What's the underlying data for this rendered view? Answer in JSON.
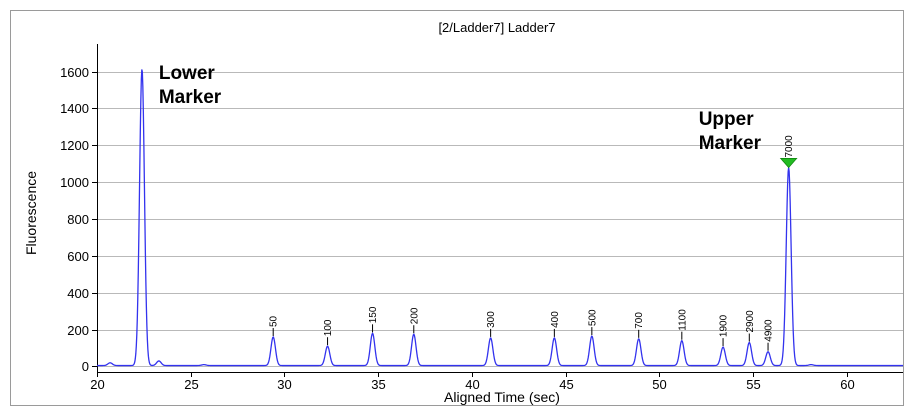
{
  "chart_data": {
    "type": "line",
    "title": "[2/Ladder7] Ladder7",
    "xlabel": "Aligned Time (sec)",
    "ylabel": "Fluorescence",
    "xlim": [
      20,
      63
    ],
    "ylim": [
      -30,
      1750
    ],
    "xticks": [
      20,
      25,
      30,
      35,
      40,
      45,
      50,
      55,
      60
    ],
    "yticks": [
      0,
      200,
      400,
      600,
      800,
      1000,
      1200,
      1400,
      1600
    ],
    "grid": "horizontal",
    "line_color": "#3333ee",
    "marker_color": "#22bb22",
    "baseline": 5,
    "peaks": [
      {
        "x": 20.7,
        "y": 20,
        "label": ""
      },
      {
        "x": 22.4,
        "y": 1615,
        "label": ""
      },
      {
        "x": 23.3,
        "y": 30,
        "label": ""
      },
      {
        "x": 25.7,
        "y": 10,
        "label": ""
      },
      {
        "x": 29.4,
        "y": 160,
        "label": "50"
      },
      {
        "x": 32.3,
        "y": 110,
        "label": "100"
      },
      {
        "x": 34.7,
        "y": 180,
        "label": "150"
      },
      {
        "x": 36.9,
        "y": 175,
        "label": "200"
      },
      {
        "x": 41.0,
        "y": 155,
        "label": "300"
      },
      {
        "x": 44.4,
        "y": 155,
        "label": "400"
      },
      {
        "x": 46.4,
        "y": 165,
        "label": "500"
      },
      {
        "x": 48.9,
        "y": 150,
        "label": "700"
      },
      {
        "x": 51.2,
        "y": 140,
        "label": "1100"
      },
      {
        "x": 53.4,
        "y": 105,
        "label": "1900"
      },
      {
        "x": 54.8,
        "y": 130,
        "label": "2900"
      },
      {
        "x": 55.8,
        "y": 80,
        "label": "4900"
      },
      {
        "x": 56.9,
        "y": 1080,
        "label": "7000"
      },
      {
        "x": 58.1,
        "y": 10,
        "label": ""
      }
    ],
    "annotations": [
      {
        "lines": [
          "Lower",
          "Marker"
        ],
        "x": 23.3,
        "y": 1560
      },
      {
        "lines": [
          "Upper",
          "Marker"
        ],
        "x": 52.1,
        "y": 1310
      }
    ],
    "marker_triangle_x": 56.9
  }
}
